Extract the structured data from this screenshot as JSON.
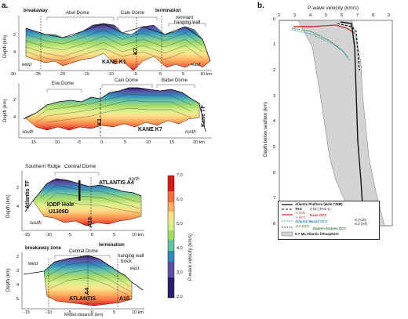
{
  "panel_a": {
    "label": "a.",
    "p1": {
      "title_breakaway": "breakaway",
      "title_abel": "Abel Dome",
      "title_cain": "Cain Dome",
      "title_termination": "termination",
      "title_remnant": "remnant",
      "title_hanging": "hanging wall",
      "west": "west",
      "east": "east",
      "name": "KANE K1",
      "k7": "K7",
      "ylabel": "Depth (km)",
      "yticks": [
        "2",
        "4"
      ],
      "xticks": [
        "-30",
        "-25",
        "-20",
        "-15",
        "-10",
        "-5",
        "0",
        "5",
        "10 km"
      ]
    },
    "p2": {
      "eve": "Eve Dome",
      "cain": "Cain Dome",
      "babel": "Babel Dome",
      "south": "south",
      "north": "north",
      "name": "KANE K7",
      "k1": "K1",
      "kanetf": "Kane TF",
      "ylabel": "Depth (km)",
      "yticks": [
        "2",
        "4"
      ],
      "xticks": [
        "-15",
        "-10",
        "-5",
        "0",
        "5",
        "10",
        "15",
        "20 km"
      ]
    },
    "p3": {
      "southern": "Southern Ridge",
      "central": "Central Dome",
      "north": "north",
      "south": "south",
      "atlantis_tf": "Atlantis TF",
      "name": "ATLANTIS A4",
      "iodp1": "IODP Hole",
      "iodp2": "U1309D",
      "a10": "A10",
      "ylabel": "Depth (km)",
      "yticks": [
        "2",
        "4"
      ],
      "xticks": [
        "-15",
        "-10",
        "-5",
        "0",
        "5",
        "10 km"
      ]
    },
    "p4": {
      "termination": "termination",
      "breakaway": "breakaway zone",
      "central": "Central Dome",
      "hanging1": "hanging wall",
      "hanging2": "block",
      "west": "west",
      "east": "east",
      "name": "ATLANTIS",
      "a10": "A10",
      "a4": "A4",
      "ylabel": "Depth (km)",
      "yticks": [
        "2",
        "3",
        "4",
        "5"
      ],
      "xticks": [
        "-15",
        "-10",
        "-5",
        "0",
        "5",
        "10 km"
      ],
      "xlabel": "Model distance (km)"
    },
    "colorbar": {
      "label": "P-wave velocity (km/s)",
      "ticks": [
        "7.0",
        "6.0",
        "5.0",
        "4.0",
        "3.0",
        "2.0"
      ],
      "colors": [
        "#d7191c",
        "#f46d43",
        "#fdae61",
        "#fee08b",
        "#d9ef8b",
        "#a6d96a",
        "#66c2a5",
        "#3288bd",
        "#5e4fa2",
        "#2d1e6b"
      ]
    }
  },
  "panel_b": {
    "label": "b.",
    "title": "P-wave velocity (km/s)",
    "xticks": [
      "2",
      "3",
      "4",
      "5",
      "6",
      "7",
      "8",
      "9"
    ],
    "ylabel": "Depth below seafloor (km)",
    "yticks": [
      "0",
      "1",
      "2",
      "3",
      "4",
      "5",
      "6",
      "7",
      "8"
    ],
    "legend": {
      "atlantis": "Atlantis Platform (Hole 735B)",
      "tag": "TAG",
      "tag_note": "4 km (TAG-1)",
      "kane": "Kane OCC",
      "kane_k1": "-1 (K1)",
      "kane_k7": "-1 (K7)",
      "massif": "Atlantis Massif OCC",
      "massif_a10": "-5 (A10)",
      "massif_a4": "-6.3 (A4)",
      "dante": "Dante's Domes OCC",
      "dante_note": "-8.5 (DD)",
      "envelope": "0-7 Ma Atlantic lithosphere"
    }
  }
}
